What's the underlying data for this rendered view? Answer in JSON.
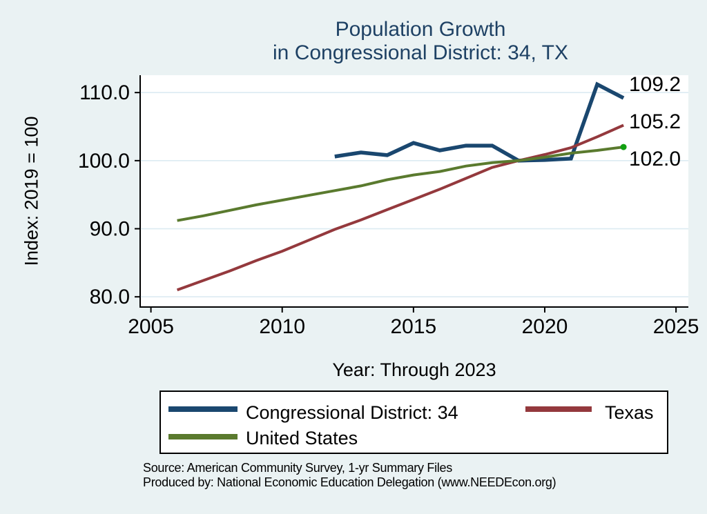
{
  "title": {
    "line1": "Population Growth",
    "line2": "in Congressional District: 34, TX"
  },
  "axes": {
    "y_label": "Index: 2019 = 100",
    "x_label": "Year: Through 2023"
  },
  "end_labels": {
    "congressional_district": "109.2",
    "texas": "105.2",
    "united_states": "102.0"
  },
  "legend": {
    "items": [
      {
        "label": "Congressional District: 34",
        "color": "#1a476f"
      },
      {
        "label": "Texas",
        "color": "#94393d"
      },
      {
        "label": "United States",
        "color": "#5a7a2e"
      }
    ]
  },
  "source": {
    "line1": "Source: American Community Survey, 1-yr Summary Files",
    "line2": "Produced by: National Economic Education Delegation (www.NEEDEcon.org)"
  },
  "colors": {
    "background": "#eaf2f3",
    "plot_background": "#ffffff",
    "gridline": "#dcebf2",
    "axis": "#000000",
    "title": "#1e4164",
    "series_cd": "#1a476f",
    "series_texas": "#94393d",
    "series_us": "#5a7a2e",
    "end_marker": "#12a012"
  },
  "chart_data": {
    "type": "line",
    "title": "Population Growth in Congressional District: 34, TX",
    "xlabel": "Year: Through 2023",
    "ylabel": "Index: 2019 = 100",
    "xlim": [
      2004.59,
      2025.47
    ],
    "ylim": [
      78.5,
      112.55
    ],
    "x_ticks": [
      2005,
      2010,
      2015,
      2020,
      2025
    ],
    "x_tick_labels": [
      "2005",
      "2010",
      "2015",
      "2020",
      "2025"
    ],
    "y_ticks": [
      80,
      90,
      100,
      110
    ],
    "y_tick_labels": [
      "80.0",
      "90.0",
      "100.0",
      "110.0"
    ],
    "grid": "horizontal",
    "legend_position": "bottom",
    "series": [
      {
        "name": "Congressional District: 34",
        "color": "#1a476f",
        "stroke_width": 5.5,
        "end_label": "109.2",
        "end_marker": false,
        "x": [
          2012,
          2013,
          2014,
          2015,
          2016,
          2017,
          2018,
          2019,
          2020,
          2021,
          2022,
          2023
        ],
        "values": [
          100.6,
          101.2,
          100.8,
          102.6,
          101.5,
          102.2,
          102.2,
          100.0,
          100.1,
          100.3,
          111.2,
          109.2
        ]
      },
      {
        "name": "Texas",
        "color": "#94393d",
        "stroke_width": 4,
        "end_label": "105.2",
        "end_marker": false,
        "x": [
          2006,
          2007,
          2008,
          2009,
          2010,
          2011,
          2012,
          2013,
          2014,
          2015,
          2016,
          2017,
          2018,
          2019,
          2020,
          2021,
          2022,
          2023
        ],
        "values": [
          81.0,
          82.4,
          83.8,
          85.3,
          86.7,
          88.3,
          89.9,
          91.3,
          92.8,
          94.3,
          95.8,
          97.4,
          99.0,
          100.0,
          100.9,
          101.9,
          103.5,
          105.2
        ]
      },
      {
        "name": "United States",
        "color": "#5a7a2e",
        "stroke_width": 4,
        "end_label": "102.0",
        "end_marker": true,
        "x": [
          2006,
          2007,
          2008,
          2009,
          2010,
          2011,
          2012,
          2013,
          2014,
          2015,
          2016,
          2017,
          2018,
          2019,
          2020,
          2021,
          2022,
          2023
        ],
        "values": [
          91.2,
          91.9,
          92.7,
          93.5,
          94.2,
          94.9,
          95.6,
          96.3,
          97.2,
          97.9,
          98.4,
          99.2,
          99.7,
          100.0,
          100.5,
          101.1,
          101.5,
          102.0
        ]
      }
    ]
  }
}
